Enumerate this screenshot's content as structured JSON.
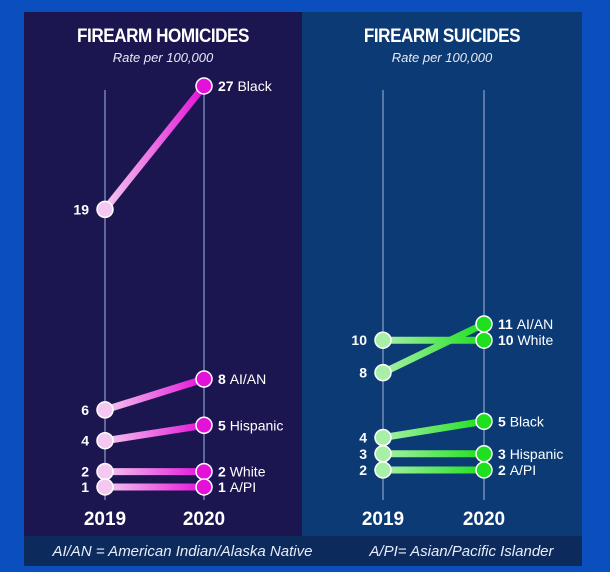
{
  "chart_data": [
    {
      "type": "line",
      "title": "FIREARM HOMICIDES",
      "subtitle": "Rate per 100,000",
      "categories": [
        "2019",
        "2020"
      ],
      "ylim": [
        1,
        27
      ],
      "colors": {
        "start": "#f4c8f0",
        "end": "#e412d8"
      },
      "series": [
        {
          "name": "Black",
          "values": [
            19,
            27
          ]
        },
        {
          "name": "AI/AN",
          "values": [
            6,
            8
          ]
        },
        {
          "name": "Hispanic",
          "values": [
            4,
            5
          ]
        },
        {
          "name": "White",
          "values": [
            2,
            2
          ]
        },
        {
          "name": "A/PI",
          "values": [
            1,
            1
          ]
        }
      ]
    },
    {
      "type": "line",
      "title": "FIREARM SUICIDES",
      "subtitle": "Rate per 100,000",
      "categories": [
        "2019",
        "2020"
      ],
      "ylim": [
        2,
        11
      ],
      "colors": {
        "start": "#a8f0a8",
        "end": "#1ee01e"
      },
      "series": [
        {
          "name": "AI/AN",
          "values": [
            8,
            11
          ]
        },
        {
          "name": "White",
          "values": [
            10,
            10
          ]
        },
        {
          "name": "Black",
          "values": [
            4,
            5
          ]
        },
        {
          "name": "Hispanic",
          "values": [
            3,
            3
          ]
        },
        {
          "name": "A/PI",
          "values": [
            2,
            2
          ]
        }
      ]
    }
  ],
  "footer": {
    "aian": "AI/AN = American Indian/Alaska Native",
    "api": "A/PI= Asian/Pacific Islander"
  }
}
